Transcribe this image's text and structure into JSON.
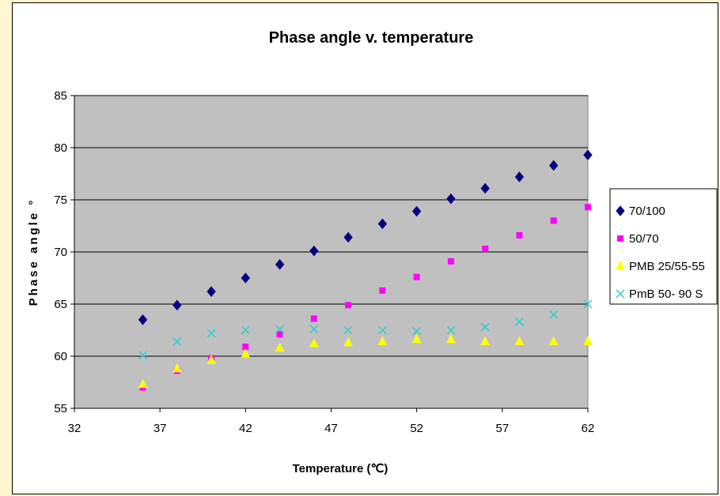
{
  "chart_data": {
    "type": "scatter",
    "title": "Phase angle v. temperature",
    "xlabel": "Temperature (℃)",
    "ylabel": "Phase angle °",
    "xlim": [
      32,
      62
    ],
    "ylim": [
      55,
      85
    ],
    "xticks": [
      32,
      37,
      42,
      47,
      52,
      57,
      62
    ],
    "yticks": [
      55,
      60,
      65,
      70,
      75,
      80,
      85
    ],
    "grid": "horizontal",
    "legend_position": "right",
    "plot_background": "#c0c0c0",
    "series": [
      {
        "name": "70/100",
        "marker": "diamond",
        "color": "#000080",
        "x": [
          36,
          38,
          40,
          42,
          44,
          46,
          48,
          50,
          52,
          54,
          56,
          58,
          60,
          62
        ],
        "y": [
          63.5,
          64.9,
          66.2,
          67.5,
          68.8,
          70.1,
          71.4,
          72.7,
          73.9,
          75.1,
          76.1,
          77.2,
          78.3,
          79.3
        ]
      },
      {
        "name": "50/70",
        "marker": "square",
        "color": "#ff00ff",
        "x": [
          36,
          38,
          40,
          42,
          44,
          46,
          48,
          50,
          52,
          54,
          56,
          58,
          60,
          62
        ],
        "y": [
          57.0,
          58.6,
          59.8,
          60.9,
          62.1,
          63.6,
          64.9,
          66.3,
          67.6,
          69.1,
          70.3,
          71.6,
          73.0,
          74.3
        ]
      },
      {
        "name": "PMB 25/55-55",
        "marker": "triangle",
        "color": "#ffff00",
        "x": [
          36,
          38,
          40,
          42,
          44,
          46,
          48,
          50,
          52,
          54,
          56,
          58,
          60,
          62
        ],
        "y": [
          57.3,
          58.8,
          59.6,
          60.2,
          60.8,
          61.2,
          61.3,
          61.4,
          61.6,
          61.6,
          61.4,
          61.4,
          61.4,
          61.4
        ]
      },
      {
        "name": "PmB 50- 90 S",
        "marker": "x",
        "color": "#33cccc",
        "x": [
          36,
          38,
          40,
          42,
          44,
          46,
          48,
          50,
          52,
          54,
          56,
          58,
          60,
          62
        ],
        "y": [
          60.1,
          61.4,
          62.2,
          62.5,
          62.6,
          62.6,
          62.5,
          62.5,
          62.4,
          62.5,
          62.8,
          63.3,
          64.0,
          65.0
        ]
      }
    ]
  }
}
